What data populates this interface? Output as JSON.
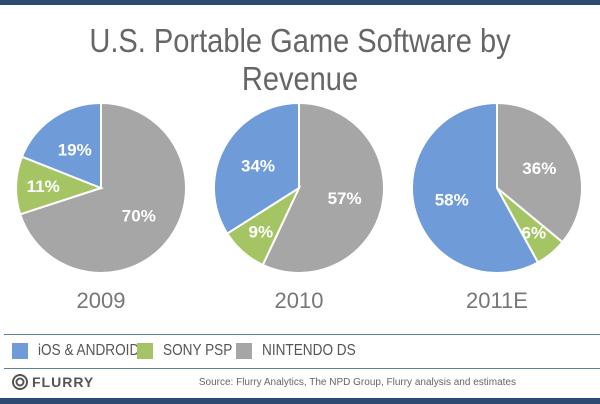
{
  "chart_data": [
    {
      "type": "pie",
      "label": "2009",
      "slices": [
        {
          "name": "NINTENDO DS",
          "value": 70,
          "label": "70%"
        },
        {
          "name": "SONY PSP",
          "value": 11,
          "label": "11%"
        },
        {
          "name": "iOS & ANDROID",
          "value": 19,
          "label": "19%"
        }
      ]
    },
    {
      "type": "pie",
      "label": "2010",
      "slices": [
        {
          "name": "NINTENDO DS",
          "value": 57,
          "label": "57%"
        },
        {
          "name": "SONY PSP",
          "value": 9,
          "label": "9%"
        },
        {
          "name": "iOS & ANDROID",
          "value": 34,
          "label": "34%"
        }
      ]
    },
    {
      "type": "pie",
      "label": "2011E",
      "slices": [
        {
          "name": "NINTENDO DS",
          "value": 36,
          "label": "36%"
        },
        {
          "name": "SONY PSP",
          "value": 6,
          "label": "6%"
        },
        {
          "name": "iOS & ANDROID",
          "value": 58,
          "label": "58%"
        }
      ]
    }
  ],
  "title": "U.S. Portable Game Software by Revenue",
  "legend": [
    {
      "label": "iOS & ANDROID",
      "color": "#6f9bd8"
    },
    {
      "label": "SONY PSP",
      "color": "#a5c565"
    },
    {
      "label": "NINTENDO DS",
      "color": "#a6a6a6"
    }
  ],
  "colors": {
    "NINTENDO DS": "#a6a6a6",
    "SONY PSP": "#a5c565",
    "iOS & ANDROID": "#6f9bd8"
  },
  "footer": {
    "logo": "FLURRY",
    "source": "Source: Flurry Analytics, The NPD Group, Flurry analysis  and estimates"
  }
}
